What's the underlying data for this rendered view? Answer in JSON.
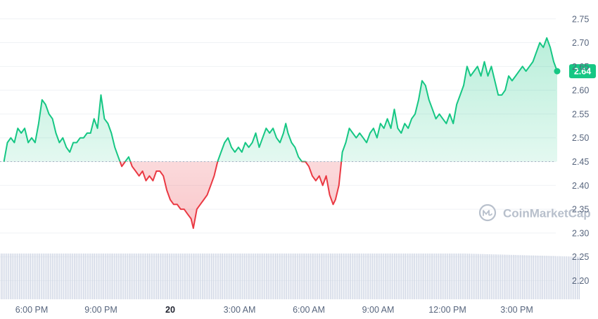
{
  "chart_data": {
    "type": "area",
    "y_range": [
      2.18,
      2.76
    ],
    "y_ticks": [
      "2.75",
      "2.70",
      "2.65",
      "2.60",
      "2.55",
      "2.50",
      "2.45",
      "2.40",
      "2.35",
      "2.30",
      "2.25",
      "2.20"
    ],
    "x_ticks": [
      {
        "label": "6:00 PM",
        "bold": false
      },
      {
        "label": "9:00 PM",
        "bold": false
      },
      {
        "label": "20",
        "bold": true
      },
      {
        "label": "3:00 AM",
        "bold": false
      },
      {
        "label": "6:00 AM",
        "bold": false
      },
      {
        "label": "9:00 AM",
        "bold": false
      },
      {
        "label": "12:00 PM",
        "bold": false
      },
      {
        "label": "3:00 PM",
        "bold": false
      }
    ],
    "time_range": [
      -1.2,
      23.7
    ],
    "baseline": 2.45,
    "last_value_label": "2.64",
    "colors": {
      "up": "#16c784",
      "down": "#ea3943",
      "grid": "#eff2f5",
      "volume": "#cfd6e4"
    },
    "watermark": "CoinMarketCap",
    "price": [
      [
        -1.2,
        2.45
      ],
      [
        -1.05,
        2.49
      ],
      [
        -0.9,
        2.5
      ],
      [
        -0.75,
        2.49
      ],
      [
        -0.6,
        2.52
      ],
      [
        -0.45,
        2.51
      ],
      [
        -0.3,
        2.52
      ],
      [
        -0.15,
        2.49
      ],
      [
        0.0,
        2.5
      ],
      [
        0.15,
        2.49
      ],
      [
        0.3,
        2.53
      ],
      [
        0.45,
        2.58
      ],
      [
        0.6,
        2.57
      ],
      [
        0.75,
        2.55
      ],
      [
        0.9,
        2.54
      ],
      [
        1.05,
        2.51
      ],
      [
        1.2,
        2.49
      ],
      [
        1.35,
        2.5
      ],
      [
        1.5,
        2.48
      ],
      [
        1.65,
        2.47
      ],
      [
        1.8,
        2.49
      ],
      [
        1.95,
        2.49
      ],
      [
        2.1,
        2.5
      ],
      [
        2.25,
        2.5
      ],
      [
        2.4,
        2.51
      ],
      [
        2.55,
        2.51
      ],
      [
        2.7,
        2.54
      ],
      [
        2.85,
        2.52
      ],
      [
        3.0,
        2.59
      ],
      [
        3.15,
        2.54
      ],
      [
        3.3,
        2.53
      ],
      [
        3.45,
        2.51
      ],
      [
        3.6,
        2.48
      ],
      [
        3.75,
        2.46
      ],
      [
        3.9,
        2.44
      ],
      [
        4.05,
        2.45
      ],
      [
        4.2,
        2.46
      ],
      [
        4.35,
        2.44
      ],
      [
        4.5,
        2.43
      ],
      [
        4.65,
        2.42
      ],
      [
        4.8,
        2.43
      ],
      [
        4.95,
        2.41
      ],
      [
        5.1,
        2.42
      ],
      [
        5.25,
        2.41
      ],
      [
        5.4,
        2.43
      ],
      [
        5.55,
        2.43
      ],
      [
        5.7,
        2.42
      ],
      [
        5.85,
        2.39
      ],
      [
        6.0,
        2.37
      ],
      [
        6.15,
        2.36
      ],
      [
        6.3,
        2.36
      ],
      [
        6.45,
        2.35
      ],
      [
        6.6,
        2.35
      ],
      [
        6.75,
        2.34
      ],
      [
        6.9,
        2.33
      ],
      [
        7.0,
        2.31
      ],
      [
        7.15,
        2.35
      ],
      [
        7.3,
        2.36
      ],
      [
        7.45,
        2.37
      ],
      [
        7.6,
        2.38
      ],
      [
        7.75,
        2.4
      ],
      [
        7.9,
        2.42
      ],
      [
        8.05,
        2.45
      ],
      [
        8.2,
        2.47
      ],
      [
        8.35,
        2.49
      ],
      [
        8.5,
        2.5
      ],
      [
        8.65,
        2.48
      ],
      [
        8.8,
        2.47
      ],
      [
        8.95,
        2.48
      ],
      [
        9.1,
        2.47
      ],
      [
        9.25,
        2.49
      ],
      [
        9.4,
        2.48
      ],
      [
        9.55,
        2.49
      ],
      [
        9.7,
        2.51
      ],
      [
        9.85,
        2.48
      ],
      [
        10.0,
        2.5
      ],
      [
        10.15,
        2.52
      ],
      [
        10.3,
        2.51
      ],
      [
        10.45,
        2.52
      ],
      [
        10.6,
        2.5
      ],
      [
        10.75,
        2.49
      ],
      [
        10.9,
        2.51
      ],
      [
        11.0,
        2.53
      ],
      [
        11.1,
        2.51
      ],
      [
        11.25,
        2.49
      ],
      [
        11.4,
        2.48
      ],
      [
        11.55,
        2.46
      ],
      [
        11.7,
        2.45
      ],
      [
        11.85,
        2.45
      ],
      [
        12.0,
        2.44
      ],
      [
        12.15,
        2.42
      ],
      [
        12.3,
        2.41
      ],
      [
        12.45,
        2.42
      ],
      [
        12.6,
        2.4
      ],
      [
        12.75,
        2.42
      ],
      [
        12.9,
        2.38
      ],
      [
        13.05,
        2.36
      ],
      [
        13.15,
        2.37
      ],
      [
        13.3,
        2.4
      ],
      [
        13.45,
        2.47
      ],
      [
        13.6,
        2.49
      ],
      [
        13.75,
        2.52
      ],
      [
        13.9,
        2.51
      ],
      [
        14.05,
        2.5
      ],
      [
        14.2,
        2.51
      ],
      [
        14.35,
        2.5
      ],
      [
        14.5,
        2.49
      ],
      [
        14.65,
        2.51
      ],
      [
        14.8,
        2.52
      ],
      [
        14.95,
        2.5
      ],
      [
        15.1,
        2.53
      ],
      [
        15.25,
        2.52
      ],
      [
        15.4,
        2.54
      ],
      [
        15.55,
        2.52
      ],
      [
        15.7,
        2.56
      ],
      [
        15.85,
        2.52
      ],
      [
        16.0,
        2.51
      ],
      [
        16.15,
        2.53
      ],
      [
        16.3,
        2.52
      ],
      [
        16.45,
        2.54
      ],
      [
        16.6,
        2.55
      ],
      [
        16.75,
        2.58
      ],
      [
        16.9,
        2.62
      ],
      [
        17.05,
        2.61
      ],
      [
        17.2,
        2.58
      ],
      [
        17.35,
        2.56
      ],
      [
        17.5,
        2.54
      ],
      [
        17.65,
        2.55
      ],
      [
        17.8,
        2.54
      ],
      [
        17.95,
        2.53
      ],
      [
        18.1,
        2.55
      ],
      [
        18.25,
        2.53
      ],
      [
        18.4,
        2.57
      ],
      [
        18.55,
        2.59
      ],
      [
        18.7,
        2.61
      ],
      [
        18.85,
        2.65
      ],
      [
        19.0,
        2.63
      ],
      [
        19.15,
        2.64
      ],
      [
        19.3,
        2.65
      ],
      [
        19.45,
        2.63
      ],
      [
        19.6,
        2.66
      ],
      [
        19.75,
        2.63
      ],
      [
        19.9,
        2.65
      ],
      [
        20.05,
        2.62
      ],
      [
        20.2,
        2.59
      ],
      [
        20.35,
        2.59
      ],
      [
        20.5,
        2.6
      ],
      [
        20.65,
        2.63
      ],
      [
        20.8,
        2.62
      ],
      [
        20.95,
        2.63
      ],
      [
        21.1,
        2.64
      ],
      [
        21.25,
        2.65
      ],
      [
        21.4,
        2.64
      ],
      [
        21.55,
        2.65
      ],
      [
        21.7,
        2.66
      ],
      [
        21.85,
        2.68
      ],
      [
        22.0,
        2.7
      ],
      [
        22.15,
        2.69
      ],
      [
        22.3,
        2.71
      ],
      [
        22.45,
        2.69
      ],
      [
        22.6,
        2.66
      ],
      [
        22.75,
        2.64
      ]
    ]
  }
}
